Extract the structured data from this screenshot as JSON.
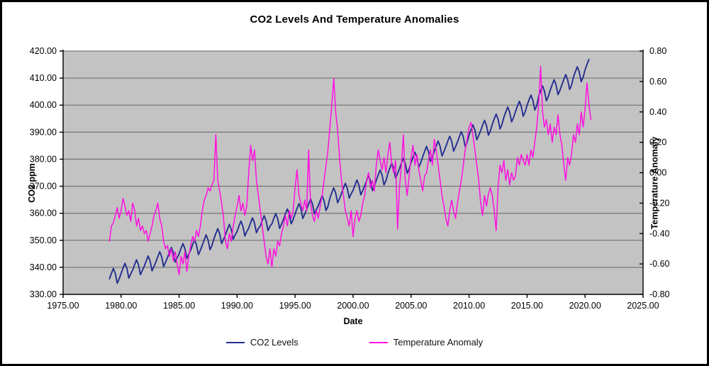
{
  "chart_data": {
    "type": "line",
    "title": "CO2 Levels And Temperature Anomalies",
    "xlabel": "Date",
    "plot_bg": "#c3c3c3",
    "grid_color": "#7a7a7a",
    "axis_color": "#000000",
    "legend_position": "bottom",
    "x_axis": {
      "min": 1975,
      "max": 2025,
      "tick_step": 5,
      "tick_labels": [
        "1975.00",
        "1980.00",
        "1985.00",
        "1990.00",
        "1995.00",
        "2000.00",
        "2005.00",
        "2010.00",
        "2015.00",
        "2020.00",
        "2025.00"
      ]
    },
    "left_axis": {
      "label": "CO2 ppm",
      "min": 330,
      "max": 420,
      "tick_step": 10,
      "tick_labels": [
        "420.00",
        "410.00",
        "400.00",
        "390.00",
        "380.00",
        "370.00",
        "360.00",
        "350.00",
        "340.00",
        "330.00"
      ]
    },
    "right_axis": {
      "label": "Temperature Anomaly",
      "min": -0.8,
      "max": 0.8,
      "tick_step": 0.2,
      "tick_labels": [
        "0.80",
        "0.60",
        "0.40",
        "0.20",
        "0.00",
        "-0.20",
        "-0.40",
        "-0.60",
        "-0.80"
      ]
    },
    "series": [
      {
        "name": "CO2 Levels",
        "axis": "left",
        "color": "#232e8f",
        "line_width": 1.9,
        "x_start": 1979.0,
        "x_step_years": 0.1666667,
        "values": [
          335.8,
          337.8,
          339.6,
          337.7,
          334.1,
          335.7,
          337.7,
          339.7,
          341.5,
          339.6,
          336.0,
          337.6,
          339.0,
          341.0,
          342.8,
          340.9,
          337.3,
          338.9,
          340.4,
          342.4,
          344.2,
          342.3,
          338.7,
          340.3,
          342.0,
          344.0,
          345.8,
          343.9,
          340.3,
          341.9,
          343.6,
          345.6,
          347.4,
          345.5,
          341.9,
          343.5,
          345.0,
          347.0,
          348.8,
          346.9,
          343.3,
          344.9,
          346.4,
          348.4,
          350.2,
          348.3,
          344.7,
          346.3,
          348.2,
          350.2,
          352.0,
          350.1,
          346.5,
          348.1,
          350.5,
          352.5,
          354.3,
          352.4,
          348.8,
          350.4,
          352.1,
          354.1,
          355.9,
          354.0,
          350.4,
          352.0,
          353.3,
          355.3,
          357.1,
          355.2,
          351.6,
          353.2,
          354.5,
          356.5,
          358.3,
          356.4,
          352.8,
          354.4,
          355.3,
          357.3,
          359.1,
          357.2,
          353.6,
          355.2,
          356.1,
          358.1,
          359.9,
          358.0,
          354.4,
          356.0,
          357.8,
          359.8,
          361.6,
          359.7,
          356.1,
          357.7,
          359.8,
          361.8,
          363.6,
          361.7,
          358.1,
          359.7,
          361.5,
          363.5,
          365.3,
          363.4,
          359.8,
          361.4,
          362.7,
          364.7,
          366.5,
          364.6,
          361.0,
          362.6,
          365.6,
          367.6,
          369.4,
          367.5,
          363.9,
          365.5,
          367.3,
          369.3,
          371.1,
          369.2,
          365.6,
          367.2,
          368.5,
          370.5,
          372.3,
          370.4,
          366.8,
          368.4,
          370.1,
          372.1,
          373.9,
          372.0,
          368.4,
          370.0,
          372.2,
          374.2,
          376.0,
          374.1,
          370.5,
          372.1,
          374.7,
          376.7,
          378.5,
          376.6,
          373.0,
          374.6,
          376.5,
          378.5,
          380.3,
          378.4,
          374.8,
          376.4,
          378.8,
          380.8,
          382.6,
          380.7,
          377.1,
          378.7,
          380.9,
          382.9,
          384.7,
          382.8,
          379.2,
          380.8,
          382.9,
          384.9,
          386.7,
          384.8,
          381.2,
          382.8,
          384.7,
          386.7,
          388.5,
          386.6,
          383.0,
          384.6,
          386.4,
          388.4,
          390.2,
          388.3,
          384.7,
          386.3,
          388.9,
          390.9,
          392.7,
          390.8,
          387.2,
          388.8,
          390.6,
          392.6,
          394.4,
          392.5,
          388.9,
          390.5,
          392.9,
          394.9,
          396.7,
          394.8,
          391.2,
          392.8,
          395.5,
          397.5,
          399.3,
          397.4,
          393.8,
          395.4,
          397.6,
          399.6,
          401.4,
          399.5,
          395.9,
          397.5,
          399.9,
          401.9,
          403.7,
          401.8,
          398.2,
          399.8,
          403.3,
          405.3,
          407.1,
          405.2,
          401.6,
          403.2,
          405.6,
          407.6,
          409.4,
          407.5,
          403.9,
          405.5,
          407.5,
          409.5,
          411.3,
          409.4,
          405.8,
          407.4,
          410.4,
          412.4,
          414.2,
          412.3,
          408.7,
          410.3,
          413.1,
          415.1,
          416.9
        ]
      },
      {
        "name": "Temperature Anomaly",
        "axis": "right",
        "color": "#ff0fe0",
        "line_width": 1.5,
        "x_start": 1979.0,
        "x_step_years": 0.1666667,
        "values": [
          -0.45,
          -0.35,
          -0.33,
          -0.28,
          -0.23,
          -0.3,
          -0.25,
          -0.17,
          -0.22,
          -0.28,
          -0.25,
          -0.32,
          -0.2,
          -0.25,
          -0.35,
          -0.3,
          -0.38,
          -0.35,
          -0.4,
          -0.38,
          -0.45,
          -0.4,
          -0.35,
          -0.28,
          -0.25,
          -0.2,
          -0.3,
          -0.35,
          -0.45,
          -0.5,
          -0.48,
          -0.55,
          -0.5,
          -0.58,
          -0.52,
          -0.6,
          -0.67,
          -0.55,
          -0.6,
          -0.52,
          -0.65,
          -0.55,
          -0.48,
          -0.42,
          -0.45,
          -0.38,
          -0.42,
          -0.35,
          -0.25,
          -0.18,
          -0.15,
          -0.1,
          -0.12,
          -0.08,
          -0.05,
          0.25,
          -0.05,
          -0.12,
          -0.2,
          -0.3,
          -0.45,
          -0.5,
          -0.4,
          -0.45,
          -0.35,
          -0.28,
          -0.22,
          -0.15,
          -0.25,
          -0.2,
          -0.28,
          -0.22,
          0.0,
          0.18,
          0.08,
          0.15,
          -0.05,
          -0.15,
          -0.25,
          -0.35,
          -0.45,
          -0.55,
          -0.6,
          -0.5,
          -0.62,
          -0.5,
          -0.55,
          -0.45,
          -0.48,
          -0.4,
          -0.35,
          -0.28,
          -0.35,
          -0.25,
          -0.3,
          -0.25,
          -0.1,
          0.02,
          -0.15,
          -0.2,
          -0.25,
          -0.18,
          -0.25,
          0.15,
          -0.2,
          -0.28,
          -0.32,
          -0.25,
          -0.3,
          -0.22,
          -0.15,
          -0.05,
          0.05,
          0.15,
          0.3,
          0.45,
          0.62,
          0.4,
          0.28,
          0.1,
          -0.05,
          -0.15,
          -0.25,
          -0.3,
          -0.35,
          -0.25,
          -0.42,
          -0.3,
          -0.25,
          -0.32,
          -0.28,
          -0.2,
          -0.15,
          -0.05,
          0.0,
          -0.1,
          -0.05,
          -0.12,
          0.05,
          0.15,
          0.08,
          0.02,
          0.1,
          0.0,
          0.12,
          0.2,
          0.05,
          0.0,
          0.08,
          -0.37,
          -0.1,
          0.05,
          0.25,
          -0.05,
          -0.15,
          -0.02,
          0.1,
          0.18,
          0.05,
          0.12,
          0.02,
          -0.05,
          -0.12,
          -0.02,
          0.0,
          0.08,
          0.15,
          0.05,
          0.22,
          0.15,
          0.05,
          -0.05,
          -0.15,
          -0.22,
          -0.3,
          -0.35,
          -0.25,
          -0.18,
          -0.25,
          -0.3,
          -0.2,
          -0.12,
          -0.05,
          0.05,
          0.15,
          0.22,
          0.3,
          0.33,
          0.25,
          0.15,
          0.05,
          -0.05,
          -0.2,
          -0.28,
          -0.15,
          -0.22,
          -0.14,
          -0.1,
          -0.15,
          -0.25,
          -0.38,
          -0.1,
          0.05,
          0.0,
          0.08,
          -0.05,
          0.02,
          -0.08,
          0.0,
          -0.05,
          -0.02,
          0.1,
          0.05,
          0.12,
          0.08,
          0.05,
          0.12,
          0.05,
          0.15,
          0.1,
          0.2,
          0.3,
          0.45,
          0.7,
          0.4,
          0.3,
          0.35,
          0.25,
          0.32,
          0.2,
          0.3,
          0.25,
          0.38,
          0.25,
          0.18,
          0.05,
          -0.05,
          0.1,
          0.05,
          0.12,
          0.25,
          0.2,
          0.32,
          0.25,
          0.4,
          0.3,
          0.42,
          0.59,
          0.45,
          0.35
        ]
      }
    ],
    "legend": {
      "items": [
        {
          "label": "CO2 Levels"
        },
        {
          "label": "Temperature Anomaly"
        }
      ]
    }
  }
}
